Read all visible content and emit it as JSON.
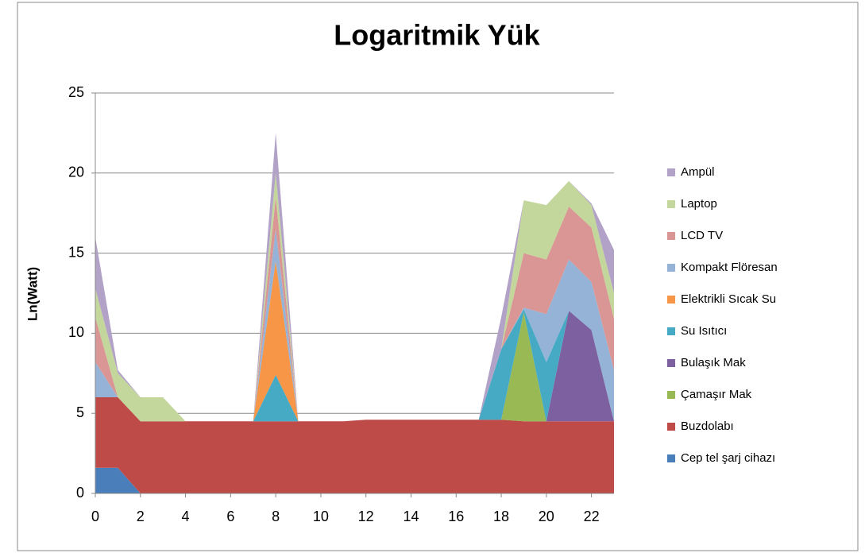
{
  "chart_data": {
    "type": "stacked_area",
    "title": "Logaritmik Yük",
    "y_label": "Ln(Watt)",
    "x": [
      0,
      1,
      2,
      3,
      4,
      5,
      6,
      7,
      8,
      9,
      10,
      11,
      12,
      13,
      14,
      15,
      16,
      17,
      18,
      19,
      20,
      21,
      22,
      23
    ],
    "xlim": [
      0,
      23
    ],
    "xticks": [
      0,
      2,
      4,
      6,
      8,
      10,
      12,
      14,
      16,
      18,
      20,
      22
    ],
    "ylim": [
      0,
      25
    ],
    "yticks": [
      0,
      5,
      10,
      15,
      20,
      25
    ],
    "grid": true,
    "legend": "right",
    "series": [
      {
        "name": "Cep tel şarj cihazı",
        "color": "#4a7ebb",
        "values": [
          1.6,
          1.6,
          0,
          0,
          0,
          0,
          0,
          0,
          0,
          0,
          0,
          0,
          0,
          0,
          0,
          0,
          0,
          0,
          0,
          0,
          0,
          0,
          0,
          0
        ]
      },
      {
        "name": "Buzdolabı",
        "color": "#be4b48",
        "values": [
          4.4,
          4.4,
          4.5,
          4.5,
          4.5,
          4.5,
          4.5,
          4.5,
          4.5,
          4.5,
          4.5,
          4.5,
          4.6,
          4.6,
          4.6,
          4.6,
          4.6,
          4.6,
          4.6,
          4.5,
          4.5,
          4.5,
          4.5,
          4.5
        ]
      },
      {
        "name": "Çamaşır Mak",
        "color": "#98b954",
        "values": [
          0,
          0,
          0,
          0,
          0,
          0,
          0,
          0,
          0,
          0,
          0,
          0,
          0,
          0,
          0,
          0,
          0,
          0,
          0,
          6.8,
          0,
          0,
          0,
          0
        ]
      },
      {
        "name": "Bulaşık Mak",
        "color": "#7d60a0",
        "values": [
          0,
          0,
          0,
          0,
          0,
          0,
          0,
          0,
          0,
          0,
          0,
          0,
          0,
          0,
          0,
          0,
          0,
          0,
          0,
          0,
          0,
          6.9,
          5.7,
          0
        ]
      },
      {
        "name": "Su Isıtıcı",
        "color": "#46aac5",
        "values": [
          0,
          0,
          0,
          0,
          0,
          0,
          0,
          0,
          2.9,
          0,
          0,
          0,
          0,
          0,
          0,
          0,
          0,
          0,
          4.4,
          0.2,
          3.7,
          0,
          0,
          0
        ]
      },
      {
        "name": "Elektrikli Sıcak Su",
        "color": "#f79646",
        "values": [
          0,
          0,
          0,
          0,
          0,
          0,
          0,
          0,
          7.1,
          0,
          0,
          0,
          0,
          0,
          0,
          0,
          0,
          0,
          0,
          0,
          0,
          0,
          0,
          0
        ]
      },
      {
        "name": "Kompakt Flöresan",
        "color": "#95b3d7",
        "values": [
          2.2,
          0,
          0,
          0,
          0,
          0,
          0,
          0,
          2,
          0,
          0,
          0,
          0,
          0,
          0,
          0,
          0,
          0,
          0,
          0.1,
          3,
          3.2,
          3,
          3.2
        ]
      },
      {
        "name": "LCD TV",
        "color": "#d99694",
        "values": [
          2.8,
          0,
          0,
          0,
          0,
          0,
          0,
          0,
          2,
          0,
          0,
          0,
          0,
          0,
          0,
          0,
          0,
          0,
          0,
          3.4,
          3.4,
          3.3,
          3.4,
          3.2
        ]
      },
      {
        "name": "Laptop",
        "color": "#c3d69b",
        "values": [
          1.8,
          1.5,
          1.5,
          1.5,
          0,
          0,
          0,
          0,
          1.5,
          0,
          0,
          0,
          0,
          0,
          0,
          0,
          0,
          0,
          0,
          3.3,
          3.4,
          1.6,
          1.4,
          1.6
        ]
      },
      {
        "name": "Ampül",
        "color": "#b3a2c7",
        "values": [
          3.2,
          0.2,
          0,
          0,
          0,
          0,
          0,
          0,
          2.5,
          0,
          0,
          0,
          0,
          0,
          0,
          0,
          0,
          0,
          2,
          0,
          0,
          0,
          0.1,
          2.7
        ]
      }
    ]
  }
}
